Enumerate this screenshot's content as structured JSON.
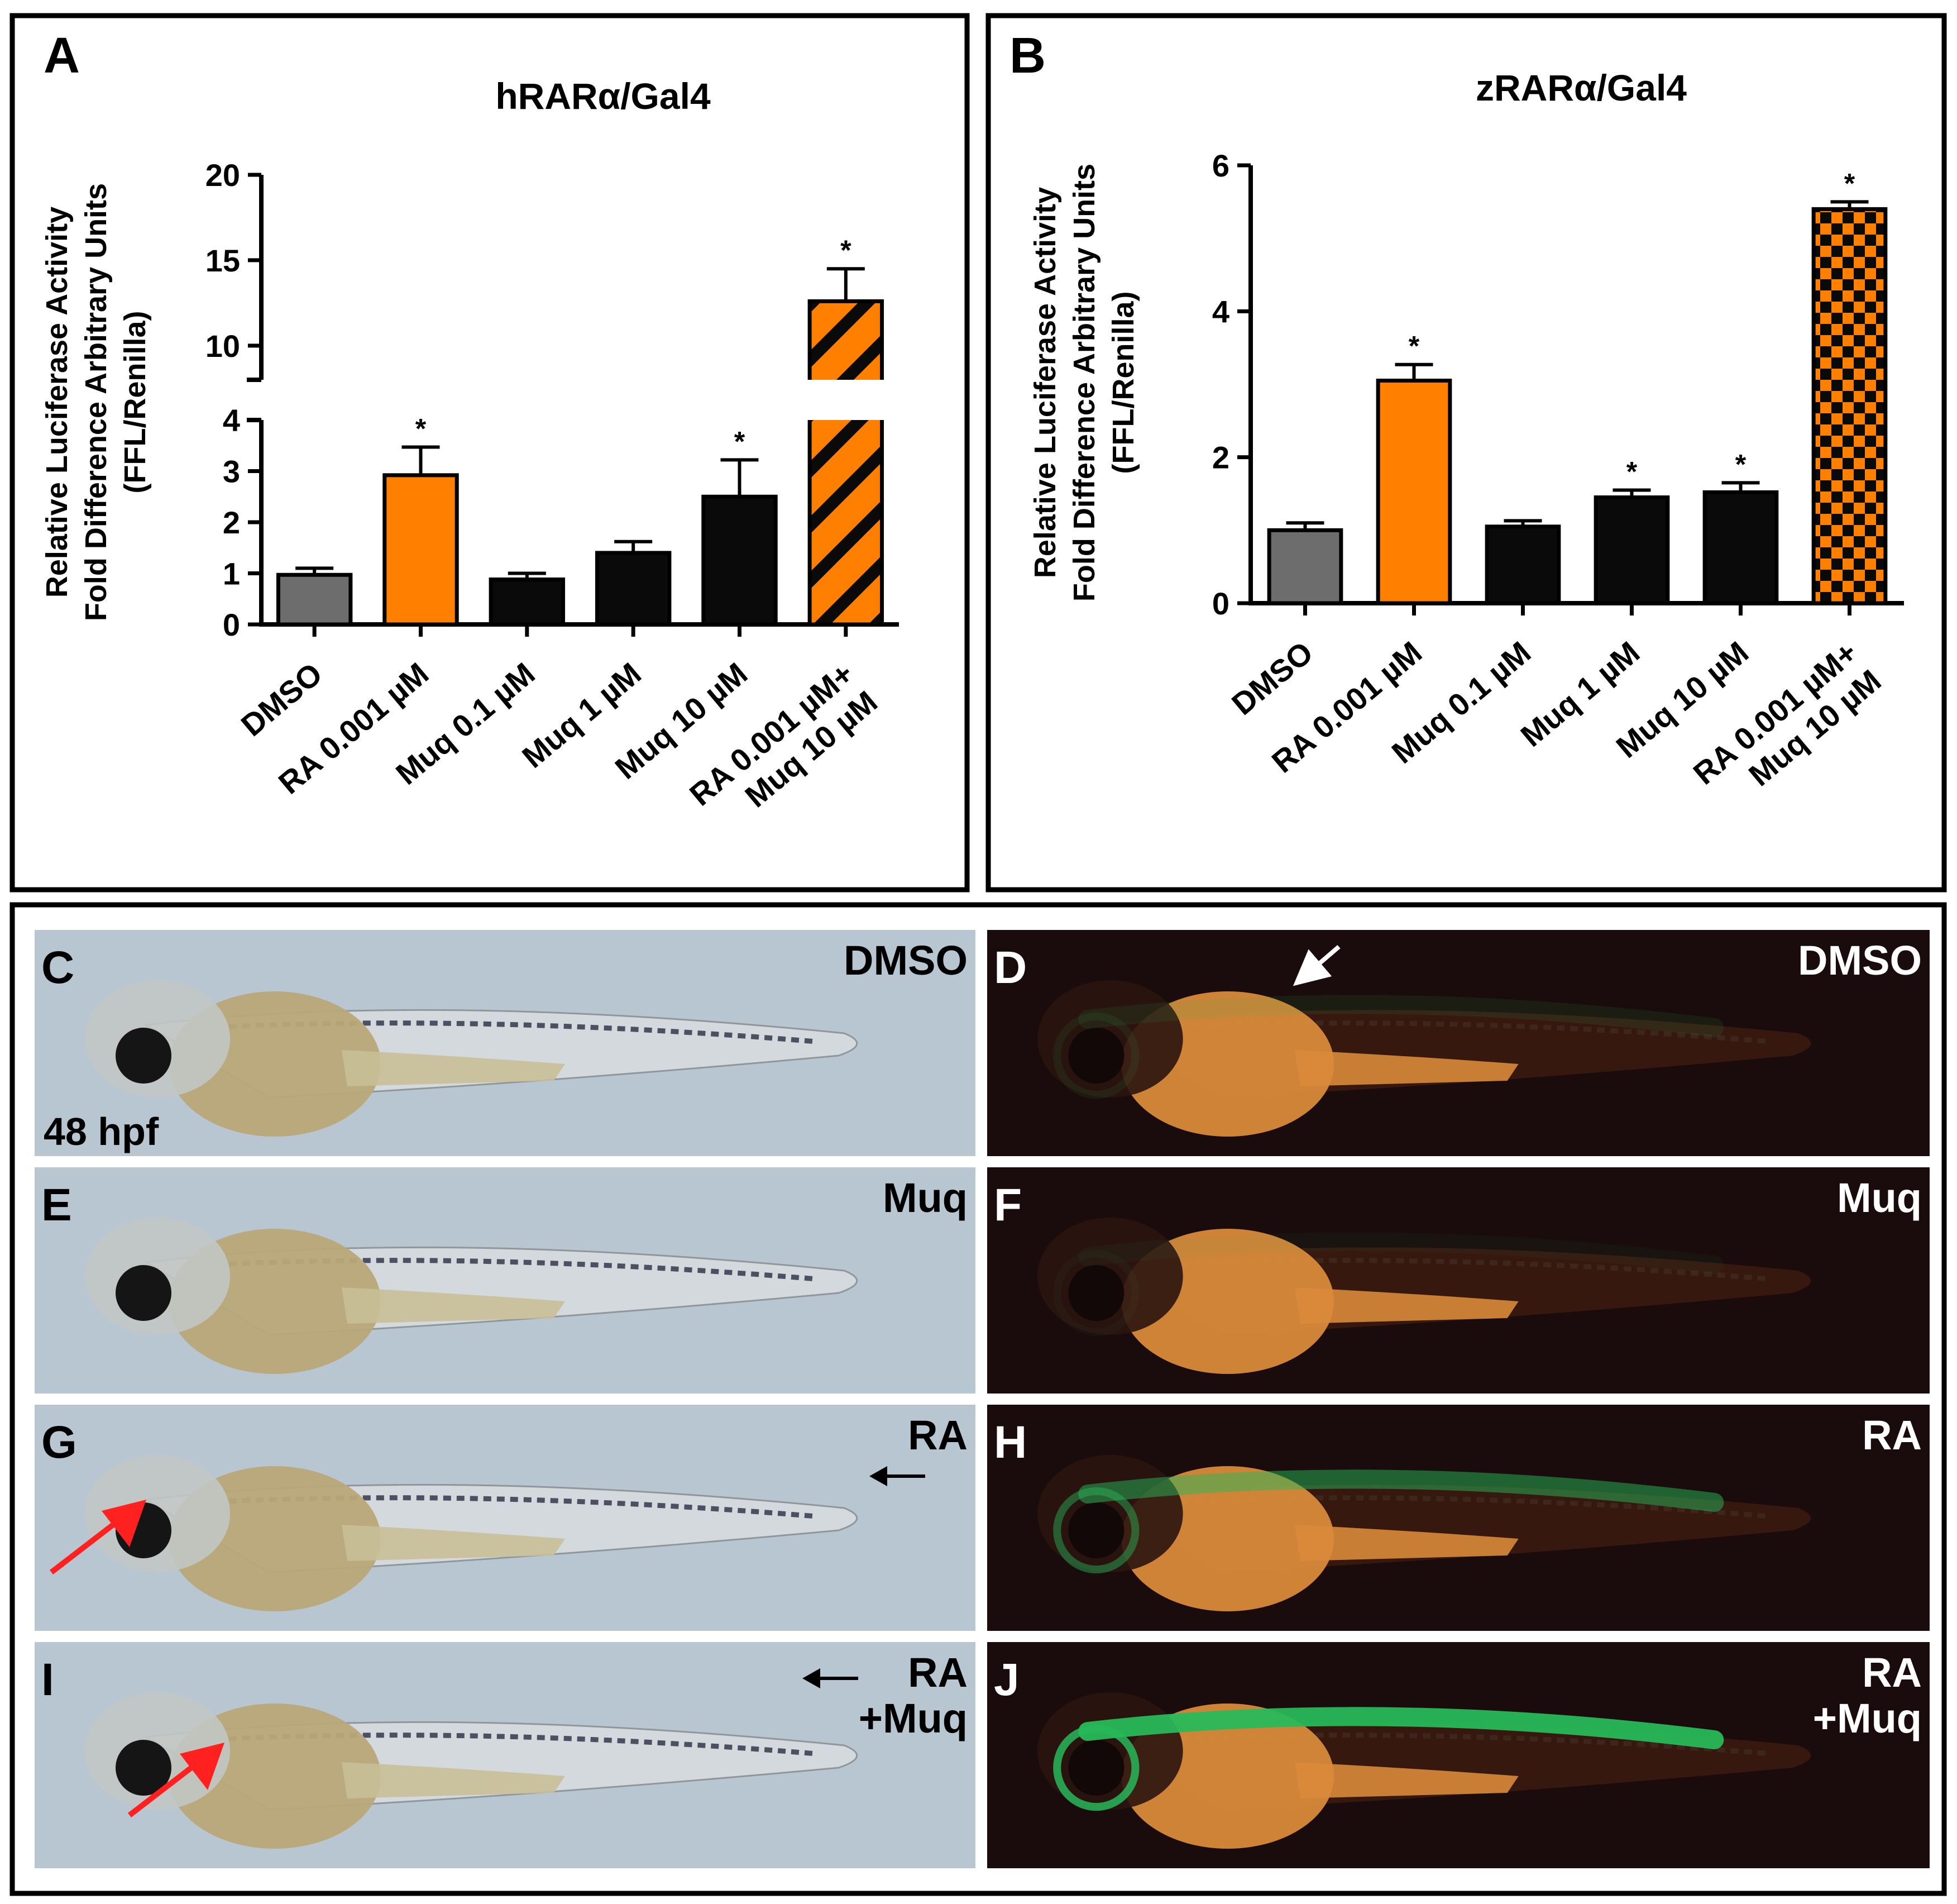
{
  "panels_top": [
    {
      "letter": "A",
      "chart_title": "hRARα/Gal4",
      "ylabel_lines": [
        "Relative Luciferase Activity",
        "Fold Difference Arbitrary Units",
        "(FFL/Renilla)"
      ]
    },
    {
      "letter": "B",
      "chart_title": "zRARα/Gal4",
      "ylabel_lines": [
        "Relative Luciferase Activity",
        "Fold Difference Arbitrary Units",
        "(FFL/Renilla)"
      ]
    }
  ],
  "chart_data": [
    {
      "type": "bar",
      "title": "hRARα/Gal4",
      "ylabel": "Relative Luciferase Activity Fold Difference Arbitrary Units (FFL/Renilla)",
      "xlabel": "",
      "y_axis_break": {
        "lower": [
          0,
          4
        ],
        "upper": [
          8,
          20
        ]
      },
      "yticks_lower": [
        0,
        1,
        2,
        3,
        4
      ],
      "yticks_upper": [
        10,
        15,
        20
      ],
      "categories": [
        [
          "DMSO"
        ],
        [
          "RA 0.001 µM"
        ],
        [
          "Muq 0.1 µM"
        ],
        [
          "Muq 1 µM"
        ],
        [
          "Muq 10 µM"
        ],
        [
          "RA 0.001 µM+",
          "Muq 10 µM"
        ]
      ],
      "values": [
        0.97,
        2.92,
        0.88,
        1.4,
        2.5,
        12.6
      ],
      "errors": [
        0.13,
        0.55,
        0.12,
        0.22,
        0.72,
        1.9
      ],
      "significance": [
        "",
        "*",
        "",
        "",
        "*",
        "*"
      ],
      "fills": [
        "gray",
        "orange",
        "black",
        "black",
        "black",
        "orange-stripes"
      ],
      "colors": {
        "gray": "#6d6d6d",
        "orange": "#ff8000",
        "black": "#0a0a0a"
      },
      "grid": false,
      "legend": "none"
    },
    {
      "type": "bar",
      "title": "zRARα/Gal4",
      "ylabel": "Relative Luciferase Activity Fold Difference Arbitrary Units (FFL/Renilla)",
      "xlabel": "",
      "ylim": [
        0,
        6
      ],
      "yticks": [
        0,
        2,
        4,
        6
      ],
      "categories": [
        [
          "DMSO"
        ],
        [
          "RA 0.001 µM"
        ],
        [
          "Muq 0.1 µM"
        ],
        [
          "Muq 1 µM"
        ],
        [
          "Muq 10 µM"
        ],
        [
          "RA 0.001 µM+",
          "Muq 10 µM"
        ]
      ],
      "values": [
        1.0,
        3.05,
        1.05,
        1.45,
        1.52,
        5.4
      ],
      "errors": [
        0.1,
        0.22,
        0.08,
        0.1,
        0.13,
        0.1
      ],
      "significance": [
        "",
        "*",
        "",
        "*",
        "*",
        "*"
      ],
      "fills": [
        "gray",
        "orange",
        "black",
        "black",
        "black",
        "orange-checker"
      ],
      "colors": {
        "gray": "#6d6d6d",
        "orange": "#ff8000",
        "black": "#0a0a0a"
      },
      "grid": false,
      "legend": "none"
    }
  ],
  "image_panels": [
    {
      "letter": "C",
      "label_lines": [
        "DMSO"
      ],
      "note": "48 hpf",
      "kind": "brightfield"
    },
    {
      "letter": "D",
      "label_lines": [
        "DMSO"
      ],
      "note": "",
      "kind": "fluorescence",
      "green": 0.1
    },
    {
      "letter": "E",
      "label_lines": [
        "Muq"
      ],
      "note": "",
      "kind": "brightfield"
    },
    {
      "letter": "F",
      "label_lines": [
        "Muq"
      ],
      "note": "",
      "kind": "fluorescence",
      "green": 0.05
    },
    {
      "letter": "G",
      "label_lines": [
        "RA"
      ],
      "note": "",
      "kind": "brightfield"
    },
    {
      "letter": "H",
      "label_lines": [
        "RA"
      ],
      "note": "",
      "kind": "fluorescence",
      "green": 0.5
    },
    {
      "letter": "I",
      "label_lines": [
        "RA",
        "+Muq"
      ],
      "note": "",
      "kind": "brightfield"
    },
    {
      "letter": "J",
      "label_lines": [
        "RA",
        "+Muq"
      ],
      "note": "",
      "kind": "fluorescence",
      "green": 0.95
    }
  ],
  "colors": {
    "brightfield_bg": "#b8c6d2",
    "fluorescence_bg": "#1a0c0c",
    "yolk_bright": "#b8a878",
    "yolk_fluo": "#d98a3a",
    "gfp": "#28b85a",
    "red_arrow": "#ff2020"
  }
}
